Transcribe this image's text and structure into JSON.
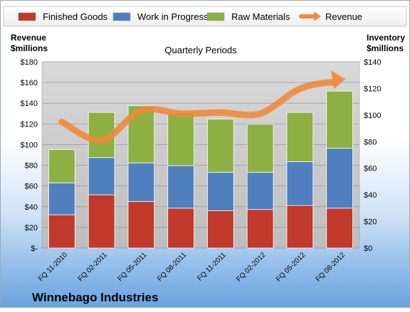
{
  "chart_data": {
    "type": "bar",
    "stacked": true,
    "title": "Quarterly Periods",
    "footer": "Winnebago Industries",
    "y_left": {
      "title_line1": "Revenue",
      "title_line2": "$millions",
      "range": [
        0,
        180
      ],
      "ticks": [
        0,
        20,
        40,
        60,
        80,
        100,
        120,
        140,
        160,
        180
      ],
      "tick_labels": [
        "$-",
        "$20",
        "$40",
        "$60",
        "$80",
        "$100",
        "$120",
        "$140",
        "$160",
        "$180"
      ]
    },
    "y_right": {
      "title_line1": "Inventory",
      "title_line2": "$millions",
      "range": [
        0,
        140
      ],
      "ticks": [
        0,
        20,
        40,
        60,
        80,
        100,
        120,
        140
      ],
      "tick_labels": [
        "$0",
        "$20",
        "$40",
        "$60",
        "$80",
        "$100",
        "$120",
        "$140"
      ]
    },
    "categories": [
      "FQ 11-2010",
      "FQ 02-2011",
      "FQ 05-2011",
      "FQ 08-2011",
      "FQ 11-2011",
      "FQ 02-2012",
      "FQ 05-2012",
      "FQ 08-2012"
    ],
    "series": [
      {
        "name": "Finished Goods",
        "axis": "right",
        "color": "#c0392b",
        "values": [
          25,
          40,
          35,
          30,
          28,
          29,
          32,
          30
        ]
      },
      {
        "name": "Work in Progress",
        "axis": "right",
        "color": "#4f7fbf",
        "values": [
          24,
          28,
          29,
          32,
          29,
          28,
          33,
          45
        ]
      },
      {
        "name": "Raw Materials",
        "axis": "right",
        "color": "#8db043",
        "values": [
          25,
          34,
          43,
          40,
          40,
          36,
          37,
          43
        ]
      },
      {
        "name": "Revenue",
        "axis": "left",
        "type": "line",
        "color": "#f08a3a",
        "values": [
          122,
          104,
          133,
          130,
          131,
          130,
          154,
          162
        ]
      }
    ],
    "grid": true,
    "legend": "top"
  }
}
